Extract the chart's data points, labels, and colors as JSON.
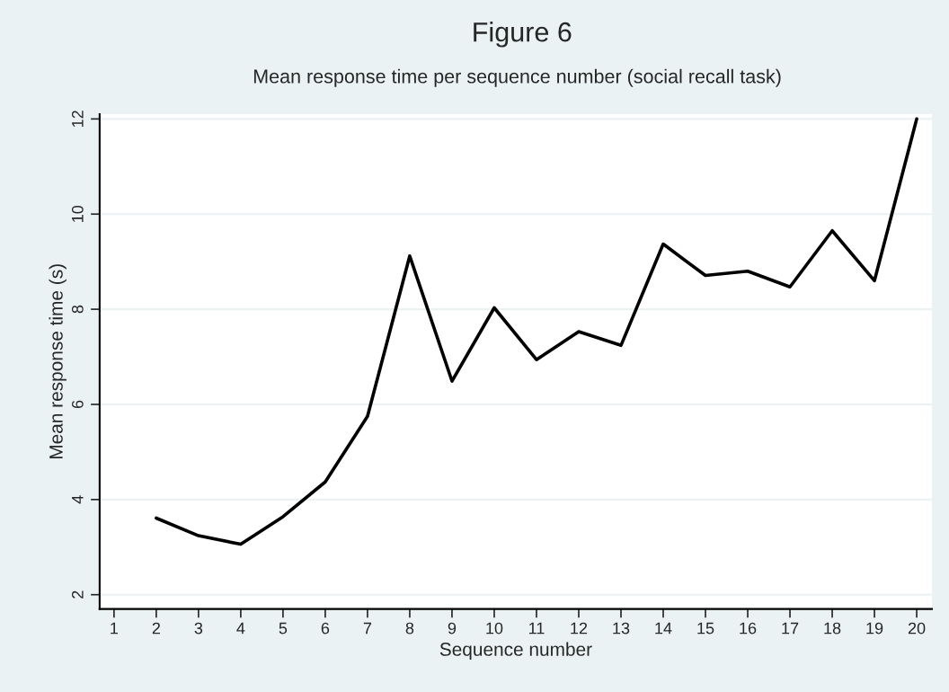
{
  "chart_data": {
    "type": "line",
    "title": "Figure 6",
    "subtitle": "Mean response time per sequence number (social recall task)",
    "xlabel": "Sequence number",
    "ylabel": "Mean response time (s)",
    "x": [
      2,
      3,
      4,
      5,
      6,
      7,
      8,
      9,
      10,
      11,
      12,
      13,
      14,
      15,
      16,
      17,
      18,
      19,
      20
    ],
    "series": [
      {
        "color": "#000000",
        "values": [
          3.61,
          3.24,
          3.06,
          3.64,
          4.37,
          5.75,
          9.12,
          6.49,
          8.03,
          6.94,
          7.53,
          7.24,
          9.37,
          8.71,
          8.8,
          8.47,
          9.65,
          8.6,
          12.0
        ]
      }
    ],
    "xlim": [
      0.66,
      20.36
    ],
    "xticks": [
      1,
      2,
      3,
      4,
      5,
      6,
      7,
      8,
      9,
      10,
      11,
      12,
      13,
      14,
      15,
      16,
      17,
      18,
      19,
      20
    ],
    "ylim": [
      1.7,
      12.1
    ],
    "yticks": [
      2,
      4,
      6,
      8,
      10,
      12
    ],
    "grid": "y",
    "marker": "none",
    "line_style": "solid"
  }
}
